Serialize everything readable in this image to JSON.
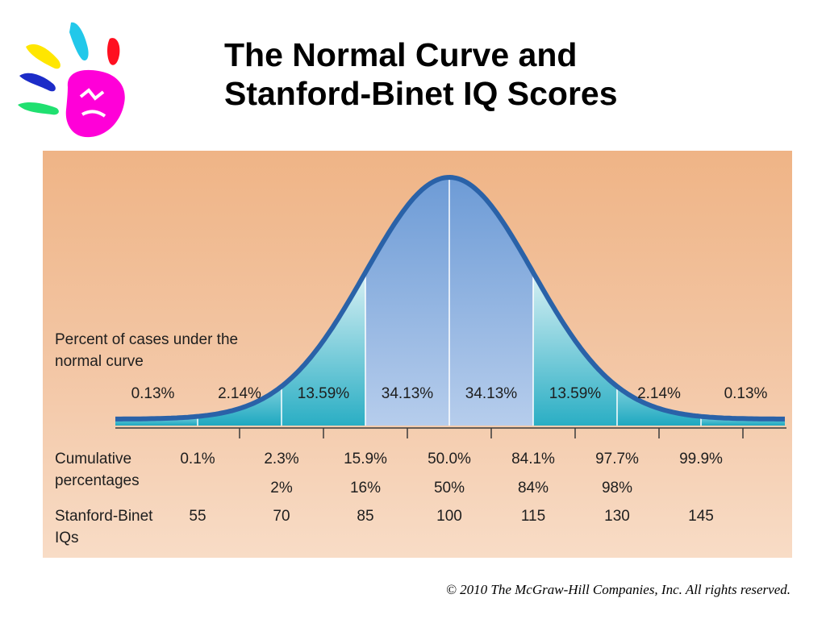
{
  "slide": {
    "title_line1": "The Normal Curve and",
    "title_line2": "Stanford-Binet IQ Scores",
    "copyright": "© 2010 The McGraw-Hill Companies, Inc. All rights reserved.",
    "logo_icon": "painted-hand-icon"
  },
  "chart_data": {
    "type": "area",
    "x": [
      55,
      70,
      85,
      100,
      115,
      130,
      145
    ],
    "xlim": [
      40,
      160
    ],
    "distribution": {
      "kind": "normal",
      "mean": 100,
      "sd": 15
    },
    "band_label_line1": "Percent of cases under the",
    "band_label_line2": "normal curve",
    "band_percentages": [
      "0.13%",
      "2.14%",
      "13.59%",
      "34.13%",
      "34.13%",
      "13.59%",
      "2.14%",
      "0.13%"
    ],
    "band_values": [
      0.13,
      2.14,
      13.59,
      34.13,
      34.13,
      13.59,
      2.14,
      0.13
    ],
    "cumulative_label_line1": "Cumulative",
    "cumulative_label_line2": "percentages",
    "cumulative_exact": [
      "0.1%",
      "2.3%",
      "15.9%",
      "50.0%",
      "84.1%",
      "97.7%",
      "99.9%"
    ],
    "cumulative_rounded": [
      "",
      "2%",
      "16%",
      "50%",
      "84%",
      "98%",
      ""
    ],
    "iq_label_line1": "Stanford-Binet",
    "iq_label_line2": "IQs",
    "iq_scores": [
      "55",
      "70",
      "85",
      "100",
      "115",
      "130",
      "145"
    ],
    "colors": {
      "curve": "#2a62a8",
      "inner_band": "#a6c1e6",
      "middle_band": "#b4e0ea",
      "outer_band": "#2aaec4",
      "panel_top": "#efb486",
      "panel_bottom": "#f8dcc6"
    }
  }
}
